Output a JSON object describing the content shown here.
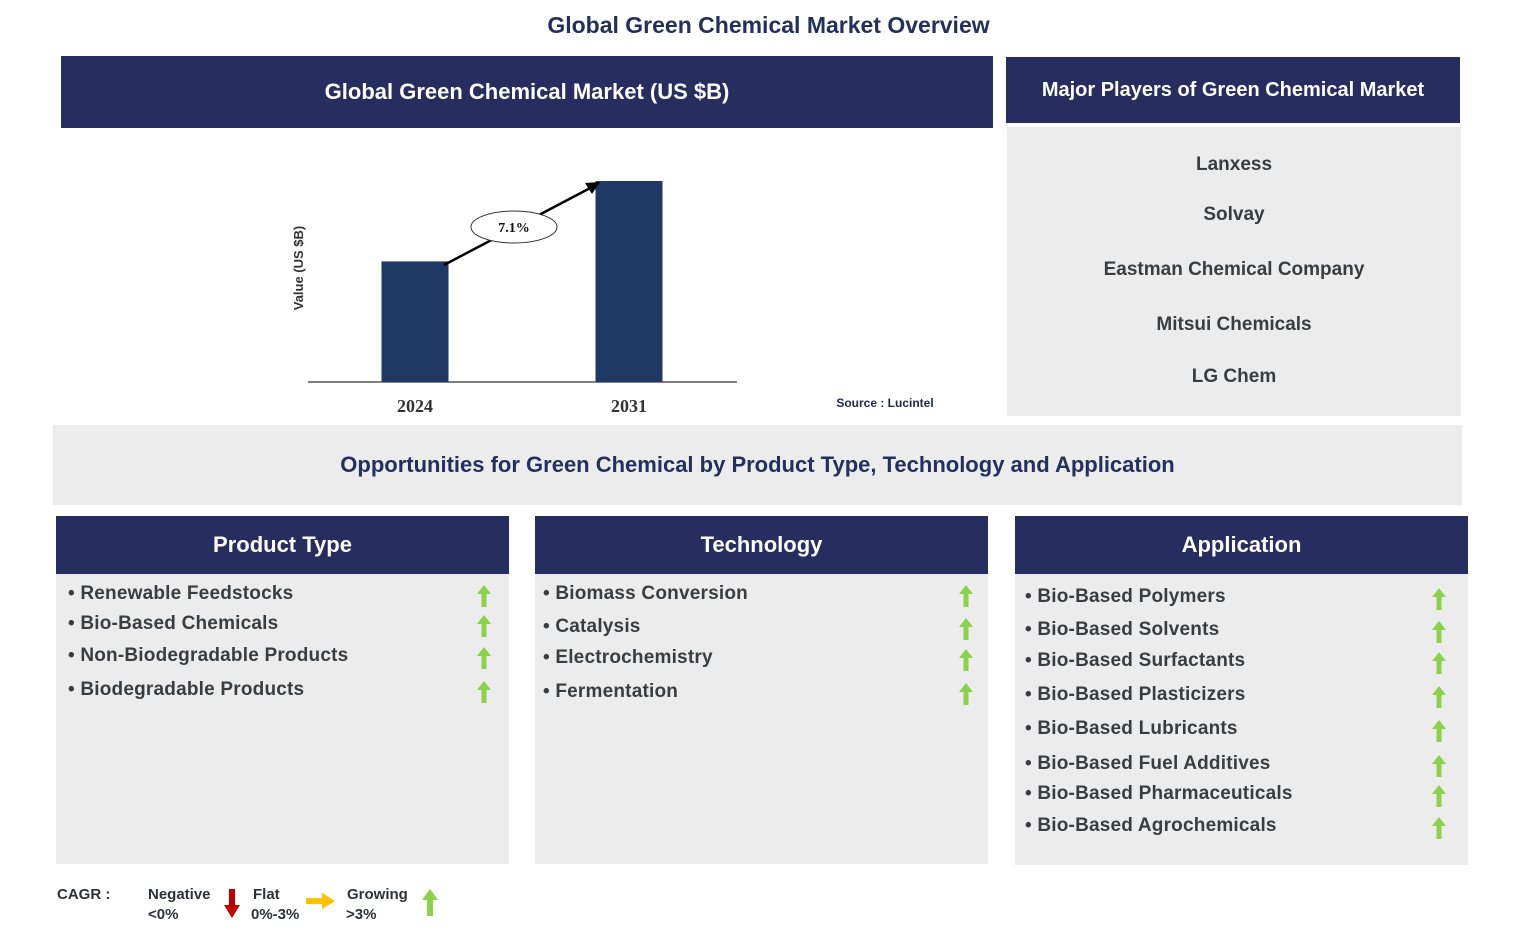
{
  "page_title": "Global Green Chemical Market Overview",
  "chart_panel": {
    "header": "Global Green Chemical Market (US $B)",
    "source": "Source : Lucintel"
  },
  "chart_data": {
    "type": "bar",
    "title": "Global Green Chemical Market (US $B)",
    "categories": [
      "2024",
      "2031"
    ],
    "values": [
      60,
      100
    ],
    "value_note": "relative bar heights; no numeric values printed",
    "ylabel": "Value (US $B)",
    "xlabel": "",
    "ylim": [
      0,
      100
    ],
    "annotation": "7.1%",
    "bar_color": "#1f3864"
  },
  "players": {
    "header": "Major Players of Green Chemical Market",
    "items": [
      "Lanxess",
      "Solvay",
      "Eastman Chemical Company",
      "Mitsui Chemicals",
      "LG Chem"
    ]
  },
  "opportunities_title": "Opportunities for Green Chemical by Product Type, Technology and Application",
  "segments": [
    {
      "title": "Product Type",
      "items": [
        "• Renewable Feedstocks",
        "• Bio-Based Chemicals",
        "• Non-Biodegradable Products",
        "• Biodegradable Products"
      ],
      "trend": [
        "growing",
        "growing",
        "growing",
        "growing"
      ]
    },
    {
      "title": "Technology",
      "items": [
        "• Biomass Conversion",
        "• Catalysis",
        "• Electrochemistry",
        "• Fermentation"
      ],
      "trend": [
        "growing",
        "growing",
        "growing",
        "growing"
      ]
    },
    {
      "title": "Application",
      "items": [
        "• Bio-Based Polymers",
        "• Bio-Based Solvents",
        "• Bio-Based Surfactants",
        "• Bio-Based Plasticizers",
        "• Bio-Based Lubricants",
        "• Bio-Based Fuel Additives",
        "• Bio-Based Pharmaceuticals",
        "• Bio-Based Agrochemicals"
      ],
      "trend": [
        "growing",
        "growing",
        "growing",
        "growing",
        "growing",
        "growing",
        "growing",
        "growing"
      ]
    }
  ],
  "legend": {
    "label": "CAGR :",
    "negative": {
      "name": "Negative",
      "range": "<0%"
    },
    "flat": {
      "name": "Flat",
      "range": "0%-3%"
    },
    "growing": {
      "name": "Growing",
      "range": ">3%"
    }
  },
  "colors": {
    "navy": "#262d5f",
    "title_blue": "#23305e",
    "panel_gray": "#ececec",
    "arrow_green": "#8bd14a",
    "arrow_red": "#c00000",
    "arrow_yellow": "#ffc000"
  }
}
